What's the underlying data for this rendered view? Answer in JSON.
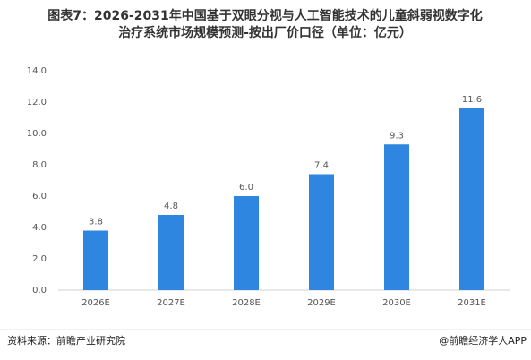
{
  "chart_data": {
    "type": "bar",
    "title": [
      "图表7：2026-2031年中国基于双眼分视与人工智能技术的儿童斜弱视数字化",
      "治疗系统市场规模预测-按出厂价口径（单位：亿元）"
    ],
    "categories": [
      "2026E",
      "2027E",
      "2028E",
      "2029E",
      "2030E",
      "2031E"
    ],
    "values": [
      3.8,
      4.8,
      6.0,
      7.4,
      9.3,
      11.6
    ],
    "value_labels": [
      "3.8",
      "4.8",
      "6.0",
      "7.4",
      "9.3",
      "11.6"
    ],
    "color": "#2f86e0",
    "ylim": [
      0,
      14
    ],
    "yticks": [
      {
        "value": 0,
        "label": "0.0"
      },
      {
        "value": 2,
        "label": "2.0"
      },
      {
        "value": 4,
        "label": "4.0"
      },
      {
        "value": 6,
        "label": "6.0"
      },
      {
        "value": 8,
        "label": "8.0"
      },
      {
        "value": 10,
        "label": "10.0"
      },
      {
        "value": 12,
        "label": "12.0"
      },
      {
        "value": 14,
        "label": "14.0"
      }
    ],
    "grid": false,
    "source": "资料来源：前瞻产业研究院",
    "credit": "@前瞻经济学人APP"
  }
}
